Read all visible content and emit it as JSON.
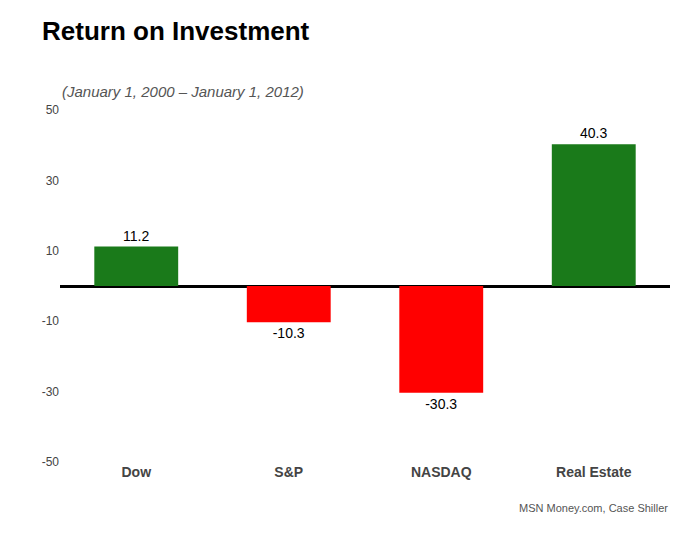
{
  "chart_data": {
    "type": "bar",
    "title": "Return on Investment",
    "subtitle": "(January 1, 2000 – January 1, 2012)",
    "annotations": [
      "MSN Money.com, Case Shiller"
    ],
    "categories": [
      "Dow",
      "S&P",
      "NASDAQ",
      "Real Estate"
    ],
    "values": [
      11.2,
      -10.3,
      -30.3,
      40.3
    ],
    "colors": [
      "#1a7a1a",
      "#ff0000",
      "#ff0000",
      "#1a7a1a"
    ],
    "ylim": [
      -50,
      50
    ],
    "yticks": [
      -50,
      -30,
      -10,
      10,
      30,
      50
    ],
    "grid": false,
    "data_labels": true
  }
}
